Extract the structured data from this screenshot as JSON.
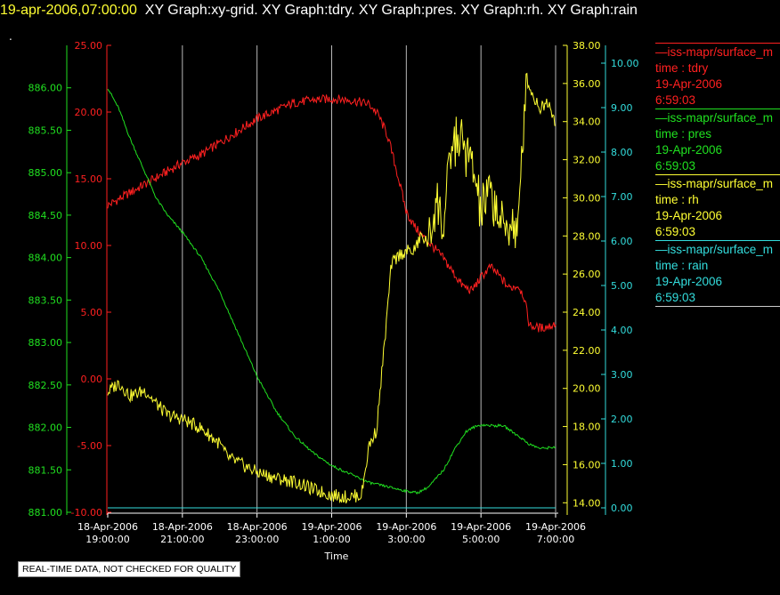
{
  "header": {
    "timestamp": "19-apr-2006,07:00:00",
    "graphs": "XY Graph:xy-grid.  XY Graph:tdry.  XY Graph:pres.  XY Graph:rh.  XY Graph:rain",
    "dot": "."
  },
  "disclaimer": "REAL-TIME DATA, NOT CHECKED FOR QUALITY",
  "legend": [
    {
      "name": "iss-mapr/surface_m",
      "var": "time : tdry",
      "date": "19-Apr-2006",
      "time": "6:59:03",
      "color": "#ff2020"
    },
    {
      "name": "iss-mapr/surface_m",
      "var": "time : pres",
      "date": "19-Apr-2006",
      "time": "6:59:03",
      "color": "#20e020"
    },
    {
      "name": "iss-mapr/surface_m",
      "var": "time : rh",
      "date": "19-Apr-2006",
      "time": "6:59:03",
      "color": "#ffff33"
    },
    {
      "name": "iss-mapr/surface_m",
      "var": "time : rain",
      "date": "19-Apr-2006",
      "time": "6:59:03",
      "color": "#33dddd"
    }
  ],
  "chart_data": {
    "type": "line",
    "xlabel": "Time",
    "x_ticks": [
      {
        "hour": 0,
        "label1": "18-Apr-2006",
        "label2": "19:00:00"
      },
      {
        "hour": 2,
        "label1": "18-Apr-2006",
        "label2": "21:00:00"
      },
      {
        "hour": 4,
        "label1": "18-Apr-2006",
        "label2": "23:00:00"
      },
      {
        "hour": 6,
        "label1": "19-Apr-2006",
        "label2": "1:00:00"
      },
      {
        "hour": 8,
        "label1": "19-Apr-2006",
        "label2": "3:00:00"
      },
      {
        "hour": 10,
        "label1": "19-Apr-2006",
        "label2": "5:00:00"
      },
      {
        "hour": 12,
        "label1": "19-Apr-2006",
        "label2": "7:00:00"
      }
    ],
    "x_grid_hours": [
      2,
      4,
      6,
      8,
      10,
      12
    ],
    "xlim_hours": [
      0,
      12
    ],
    "axes": {
      "tdry": {
        "color": "#ff2020",
        "ylim": [
          -10,
          25
        ],
        "ticks": [
          "-10.00",
          "-5.00",
          "0.00",
          "5.00",
          "10.00",
          "15.00",
          "20.00",
          "25.00"
        ]
      },
      "pres": {
        "color": "#20e020",
        "ylim": [
          881,
          886.5
        ],
        "ticks": [
          "881.00",
          "881.50",
          "882.00",
          "882.50",
          "883.00",
          "883.50",
          "884.00",
          "884.50",
          "885.00",
          "885.50",
          "886.00"
        ]
      },
      "rh": {
        "color": "#ffff33",
        "ylim": [
          13.5,
          38
        ],
        "ticks": [
          "14.00",
          "16.00",
          "18.00",
          "20.00",
          "22.00",
          "24.00",
          "26.00",
          "28.00",
          "30.00",
          "32.00",
          "34.00",
          "36.00",
          "38.00"
        ]
      },
      "rain": {
        "color": "#33dddd",
        "ylim": [
          -0.1,
          10.4
        ],
        "ticks": [
          "0.00",
          "1.00",
          "2.00",
          "3.00",
          "4.00",
          "5.00",
          "6.00",
          "7.00",
          "8.00",
          "9.00",
          "10.00"
        ]
      }
    },
    "series": [
      {
        "name": "time : tdry",
        "axis": "tdry",
        "color": "#ff2020",
        "x": [
          0,
          0.5,
          1,
          1.5,
          2,
          2.5,
          3,
          3.5,
          4,
          4.5,
          5,
          5.5,
          6,
          6.5,
          7,
          7.25,
          7.5,
          7.75,
          8,
          8.25,
          8.5,
          8.75,
          9,
          9.25,
          9.5,
          9.75,
          10,
          10.25,
          10.5,
          10.75,
          11,
          11.15,
          11.3,
          11.6,
          11.9,
          12
        ],
        "y": [
          13,
          13.8,
          14.6,
          15.4,
          16.2,
          16.8,
          17.7,
          18.6,
          19.5,
          20.1,
          20.7,
          20.9,
          21,
          20.9,
          20.6,
          19.8,
          18.2,
          15.5,
          12.5,
          11.3,
          10.5,
          9.8,
          9,
          8,
          7,
          6.6,
          7.6,
          8.4,
          7.7,
          6.8,
          7,
          6.2,
          4,
          3.8,
          4,
          4.2
        ]
      },
      {
        "name": "time : pres",
        "axis": "pres",
        "color": "#20e020",
        "x": [
          0,
          0.3,
          0.6,
          1,
          1.3,
          1.6,
          2,
          2.5,
          3,
          3.5,
          4,
          4.5,
          5,
          5.5,
          6,
          6.5,
          7,
          7.5,
          8,
          8.3,
          8.6,
          9,
          9.3,
          9.6,
          9.8,
          10,
          10.3,
          10.6,
          11,
          11.3,
          11.6,
          12
        ],
        "y": [
          886,
          885.75,
          885.4,
          885,
          884.7,
          884.5,
          884.3,
          884,
          883.6,
          883.1,
          882.6,
          882.2,
          881.9,
          881.7,
          881.55,
          881.45,
          881.35,
          881.3,
          881.25,
          881.23,
          881.3,
          881.5,
          881.75,
          881.95,
          882,
          882.03,
          882.02,
          882.02,
          881.9,
          881.8,
          881.75,
          881.77
        ]
      },
      {
        "name": "time : rh",
        "axis": "rh",
        "color": "#ffff33",
        "x": [
          0,
          0.3,
          0.6,
          1,
          1.3,
          1.6,
          2,
          2.5,
          3,
          3.2,
          3.6,
          4,
          4.5,
          5,
          5.5,
          6,
          6.4,
          6.8,
          7,
          7.2,
          7.4,
          7.6,
          7.8,
          8,
          8.2,
          8.4,
          8.6,
          8.8,
          9,
          9.2,
          9.4,
          9.6,
          9.8,
          10,
          10.2,
          10.4,
          10.6,
          10.8,
          11,
          11.2,
          11.4,
          11.6,
          11.8,
          12
        ],
        "y": [
          19.8,
          20.3,
          19.6,
          19.9,
          19.2,
          18.6,
          18.4,
          17.9,
          17.1,
          16.4,
          16.0,
          15.6,
          15.3,
          15.1,
          14.7,
          14.4,
          14.3,
          14.4,
          17,
          17.8,
          22,
          26.5,
          27,
          27.2,
          27.2,
          28,
          27.6,
          30,
          28.4,
          32.5,
          33.2,
          32.4,
          31.4,
          29.2,
          30.2,
          29.6,
          28.2,
          28.8,
          28.1,
          36.4,
          35.3,
          34.7,
          35.1,
          34
        ]
      },
      {
        "name": "time : rain",
        "axis": "rain",
        "color": "#33dddd",
        "x": [
          0,
          12
        ],
        "y": [
          0,
          0
        ]
      }
    ]
  }
}
